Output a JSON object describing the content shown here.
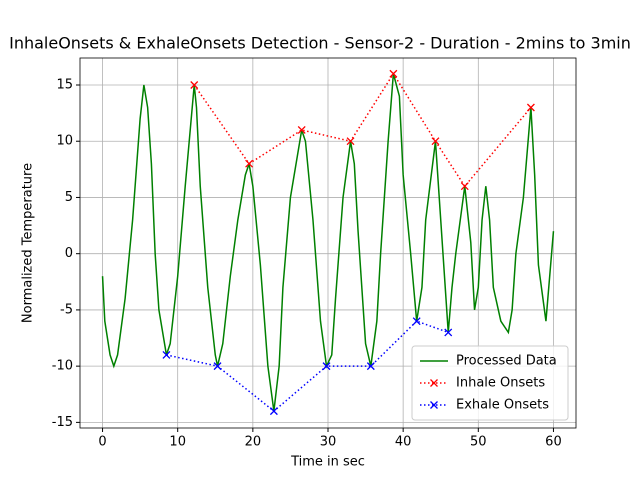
{
  "chart_data": {
    "type": "line",
    "title": "InhaleOnsets & ExhaleOnsets Detection - Sensor-2 - Duration - 2mins to 3min",
    "x_label": "Time in sec",
    "y_label": "Normalized Temperature",
    "xlim": [
      -3,
      63
    ],
    "ylim": [
      -15.5,
      17.4
    ],
    "xticks": [
      0,
      10,
      20,
      30,
      40,
      50,
      60
    ],
    "yticks": [
      -15,
      -10,
      -5,
      0,
      5,
      10,
      15
    ],
    "grid": true,
    "legend": "lower right",
    "series": [
      {
        "name": "Processed Data",
        "color": "#008000",
        "style": "solid",
        "marker": false,
        "x": [
          0,
          0.3,
          1,
          1.5,
          2,
          3,
          4,
          5,
          5.5,
          6,
          6.5,
          7,
          7.5,
          8.5,
          9,
          10,
          11,
          12.2,
          12.5,
          13,
          14,
          15,
          15.3,
          16,
          17,
          18,
          19,
          19.5,
          20,
          21,
          22,
          22.8,
          23.5,
          24,
          25,
          26,
          26.5,
          27,
          28,
          29,
          29.8,
          30.5,
          31,
          32,
          33,
          33.5,
          34,
          35,
          35.7,
          36.5,
          37,
          38,
          38.7,
          39.5,
          40,
          41,
          41.8,
          42.5,
          43,
          44.3,
          45,
          46,
          46.5,
          47,
          48.2,
          49,
          49.5,
          50,
          50.5,
          51,
          51.5,
          52,
          53,
          54,
          54.5,
          55,
          56,
          57,
          57.5,
          58,
          59,
          60
        ],
        "values": [
          -2,
          -6,
          -9,
          -10,
          -9,
          -4,
          3,
          12,
          15,
          13,
          8,
          0,
          -5,
          -9,
          -8,
          -2,
          6,
          15,
          13,
          6,
          -3,
          -9,
          -10,
          -8,
          -2,
          3,
          7,
          8,
          6,
          -1,
          -10,
          -14,
          -10,
          -3,
          5,
          9,
          11,
          10,
          3,
          -6,
          -10,
          -9,
          -4,
          5,
          10,
          8,
          2,
          -8,
          -10,
          -6,
          0,
          10,
          16,
          14,
          7,
          0,
          -6,
          -3,
          3,
          10,
          3,
          -7,
          -3,
          0,
          6,
          1,
          -5,
          -3,
          3,
          6,
          3,
          -3,
          -6,
          -7,
          -5,
          0,
          5,
          13,
          7,
          -1,
          -6,
          2
        ]
      },
      {
        "name": "Inhale Onsets",
        "color": "#ff0000",
        "style": "dotted",
        "marker": true,
        "x": [
          12.2,
          19.5,
          26.5,
          33,
          38.7,
          44.3,
          48.2,
          57
        ],
        "values": [
          15,
          8,
          11,
          10,
          16,
          10,
          6,
          13
        ]
      },
      {
        "name": "Exhale Onsets",
        "color": "#0000ff",
        "style": "dotted",
        "marker": true,
        "x": [
          8.5,
          15.3,
          22.8,
          29.8,
          35.7,
          41.8,
          46
        ],
        "values": [
          -9,
          -10,
          -14,
          -10,
          -10,
          -6,
          -7
        ]
      }
    ]
  }
}
